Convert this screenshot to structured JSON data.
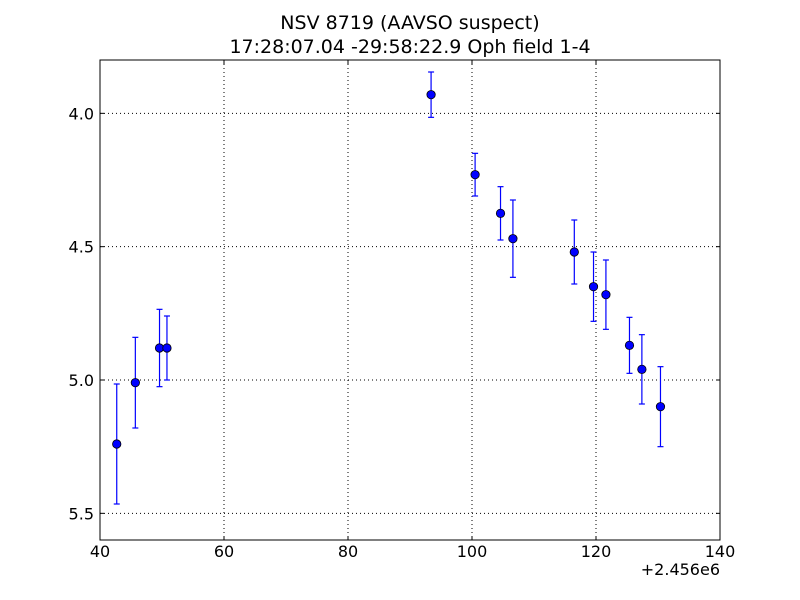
{
  "chart_data": {
    "type": "scatter",
    "title": "NSV 8719 (AAVSO suspect)",
    "subtitle": "17:28:07.04 -29:58:22.9 Oph field 1-4",
    "xlabel": "",
    "ylabel": "",
    "x_offset_label": "+2.456e6",
    "xlim": [
      40,
      140
    ],
    "ylim": [
      5.6,
      3.8
    ],
    "y_inverted": true,
    "grid": true,
    "grid_style": "dotted",
    "marker_color": "#0000ff",
    "x_ticks": [
      40,
      60,
      80,
      100,
      120,
      140
    ],
    "x_tick_labels": [
      "40",
      "60",
      "80",
      "100",
      "120",
      "140"
    ],
    "y_ticks": [
      4.0,
      4.5,
      5.0,
      5.5
    ],
    "y_tick_labels": [
      "4.0",
      "4.5",
      "5.0",
      "5.5"
    ],
    "points": [
      {
        "x": 42.7,
        "y": 5.24,
        "err": 0.225
      },
      {
        "x": 45.7,
        "y": 5.01,
        "err": 0.17
      },
      {
        "x": 49.6,
        "y": 4.88,
        "err": 0.145
      },
      {
        "x": 50.8,
        "y": 4.88,
        "err": 0.12
      },
      {
        "x": 93.4,
        "y": 3.93,
        "err": 0.085
      },
      {
        "x": 100.5,
        "y": 4.23,
        "err": 0.08
      },
      {
        "x": 104.6,
        "y": 4.375,
        "err": 0.1
      },
      {
        "x": 106.6,
        "y": 4.47,
        "err": 0.145
      },
      {
        "x": 116.5,
        "y": 4.52,
        "err": 0.12
      },
      {
        "x": 119.6,
        "y": 4.65,
        "err": 0.13
      },
      {
        "x": 121.6,
        "y": 4.68,
        "err": 0.13
      },
      {
        "x": 125.4,
        "y": 4.87,
        "err": 0.105
      },
      {
        "x": 127.4,
        "y": 4.96,
        "err": 0.13
      },
      {
        "x": 130.4,
        "y": 5.1,
        "err": 0.15
      }
    ]
  }
}
